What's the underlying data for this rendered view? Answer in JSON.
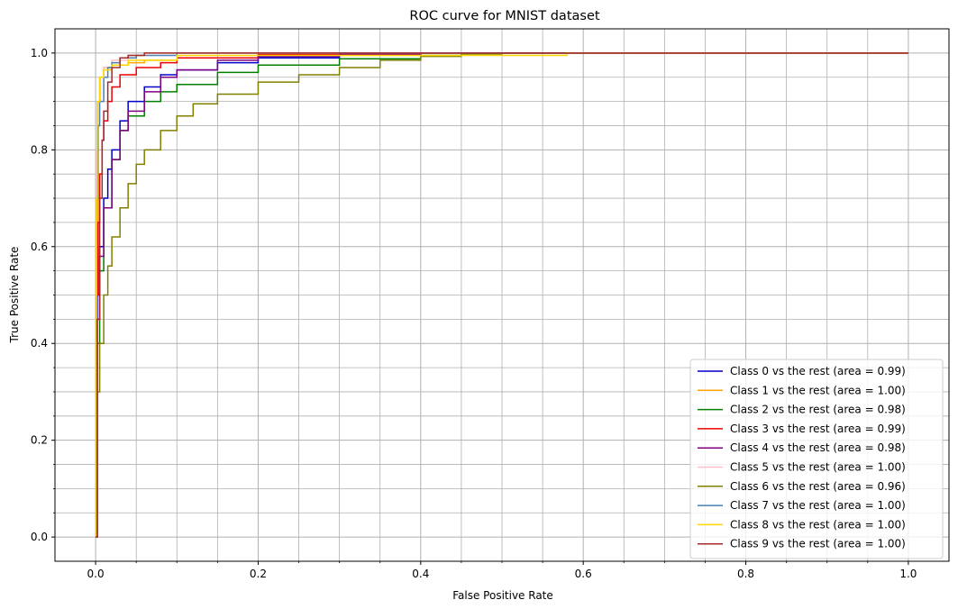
{
  "chart_data": {
    "type": "line",
    "title": "ROC curve for MNIST dataset",
    "xlabel": "False Positive Rate",
    "ylabel": "True Positive Rate",
    "xlim": [
      -0.05,
      1.05
    ],
    "ylim": [
      -0.05,
      1.05
    ],
    "x_ticks": [
      "0.0",
      "0.2",
      "0.4",
      "0.6",
      "0.8",
      "1.0"
    ],
    "y_ticks": [
      "0.0",
      "0.2",
      "0.4",
      "0.6",
      "0.8",
      "1.0"
    ],
    "grid": true,
    "minor_grid": true,
    "legend_position": "lower-right",
    "series": [
      {
        "name": "Class 0 vs the rest (area = 0.99)",
        "color": "#0000cc",
        "x": [
          0,
          0.002,
          0.005,
          0.01,
          0.015,
          0.02,
          0.03,
          0.04,
          0.06,
          0.08,
          0.1,
          0.15,
          0.2,
          0.3,
          0.4,
          0.58,
          1.0
        ],
        "y": [
          0,
          0.5,
          0.6,
          0.7,
          0.76,
          0.8,
          0.86,
          0.9,
          0.93,
          0.955,
          0.965,
          0.98,
          0.99,
          0.998,
          1.0,
          1.0,
          1.0
        ]
      },
      {
        "name": "Class 1 vs the rest (area = 1.00)",
        "color": "#ffa500",
        "x": [
          0,
          0.001,
          0.003,
          0.005,
          0.01,
          0.02,
          0.04,
          0.06,
          0.1,
          0.2,
          0.4,
          0.58,
          1.0
        ],
        "y": [
          0,
          0.55,
          0.9,
          0.95,
          0.97,
          0.975,
          0.98,
          0.985,
          0.99,
          0.995,
          1.0,
          1.0,
          1.0
        ]
      },
      {
        "name": "Class 2 vs the rest (area = 0.98)",
        "color": "#008000",
        "x": [
          0,
          0.002,
          0.005,
          0.01,
          0.02,
          0.03,
          0.04,
          0.06,
          0.08,
          0.1,
          0.15,
          0.2,
          0.3,
          0.4,
          0.45,
          1.0
        ],
        "y": [
          0,
          0.4,
          0.55,
          0.68,
          0.78,
          0.84,
          0.87,
          0.9,
          0.92,
          0.935,
          0.96,
          0.975,
          0.988,
          0.995,
          1.0,
          1.0
        ]
      },
      {
        "name": "Class 3 vs the rest (area = 0.99)",
        "color": "#ee0000",
        "x": [
          0,
          0.001,
          0.003,
          0.005,
          0.008,
          0.01,
          0.015,
          0.02,
          0.03,
          0.05,
          0.08,
          0.1,
          0.2,
          0.4,
          1.0
        ],
        "y": [
          0,
          0.5,
          0.65,
          0.75,
          0.82,
          0.86,
          0.9,
          0.93,
          0.955,
          0.97,
          0.98,
          0.99,
          0.997,
          1.0,
          1.0
        ]
      },
      {
        "name": "Class 4 vs the rest (area = 0.98)",
        "color": "#800080",
        "x": [
          0,
          0.002,
          0.005,
          0.01,
          0.02,
          0.03,
          0.04,
          0.06,
          0.08,
          0.1,
          0.15,
          0.2,
          0.3,
          0.4,
          1.0
        ],
        "y": [
          0,
          0.45,
          0.58,
          0.68,
          0.78,
          0.84,
          0.88,
          0.92,
          0.95,
          0.965,
          0.985,
          0.993,
          0.998,
          1.0,
          1.0
        ]
      },
      {
        "name": "Class 5 vs the rest (area = 1.00)",
        "color": "#ffc0cb",
        "x": [
          0,
          0.001,
          0.003,
          0.006,
          0.01,
          0.02,
          0.04,
          0.06,
          0.1,
          1.0
        ],
        "y": [
          0,
          0.8,
          0.9,
          0.95,
          0.97,
          0.985,
          0.995,
          1.0,
          1.0,
          1.0
        ]
      },
      {
        "name": "Class 6 vs the rest (area = 0.96)",
        "color": "#808000",
        "x": [
          0,
          0.002,
          0.005,
          0.01,
          0.015,
          0.02,
          0.03,
          0.04,
          0.05,
          0.06,
          0.08,
          0.1,
          0.12,
          0.15,
          0.2,
          0.25,
          0.3,
          0.35,
          0.4,
          0.45,
          0.5,
          1.0
        ],
        "y": [
          0,
          0.3,
          0.4,
          0.5,
          0.56,
          0.62,
          0.68,
          0.73,
          0.77,
          0.8,
          0.84,
          0.87,
          0.895,
          0.915,
          0.94,
          0.955,
          0.97,
          0.985,
          0.993,
          0.998,
          1.0,
          1.0
        ]
      },
      {
        "name": "Class 7 vs the rest (area = 1.00)",
        "color": "#4682b4",
        "x": [
          0,
          0.001,
          0.003,
          0.005,
          0.01,
          0.015,
          0.02,
          0.03,
          0.05,
          0.1,
          1.0
        ],
        "y": [
          0,
          0.7,
          0.85,
          0.9,
          0.95,
          0.97,
          0.98,
          0.99,
          0.995,
          1.0,
          1.0
        ]
      },
      {
        "name": "Class 8 vs the rest (area = 1.00)",
        "color": "#ffd700",
        "x": [
          0,
          0.001,
          0.002,
          0.005,
          0.01,
          0.02,
          0.04,
          0.1,
          0.58,
          1.0
        ],
        "y": [
          0,
          0.7,
          0.9,
          0.95,
          0.965,
          0.975,
          0.985,
          0.995,
          1.0,
          1.0
        ]
      },
      {
        "name": "Class 9 vs the rest (area = 1.00)",
        "color": "#a52a2a",
        "x": [
          0,
          0.002,
          0.005,
          0.008,
          0.01,
          0.015,
          0.02,
          0.03,
          0.04,
          0.06,
          0.1,
          1.0
        ],
        "y": [
          0,
          0.45,
          0.7,
          0.82,
          0.88,
          0.94,
          0.97,
          0.99,
          0.995,
          1.0,
          1.0,
          1.0
        ]
      }
    ]
  }
}
